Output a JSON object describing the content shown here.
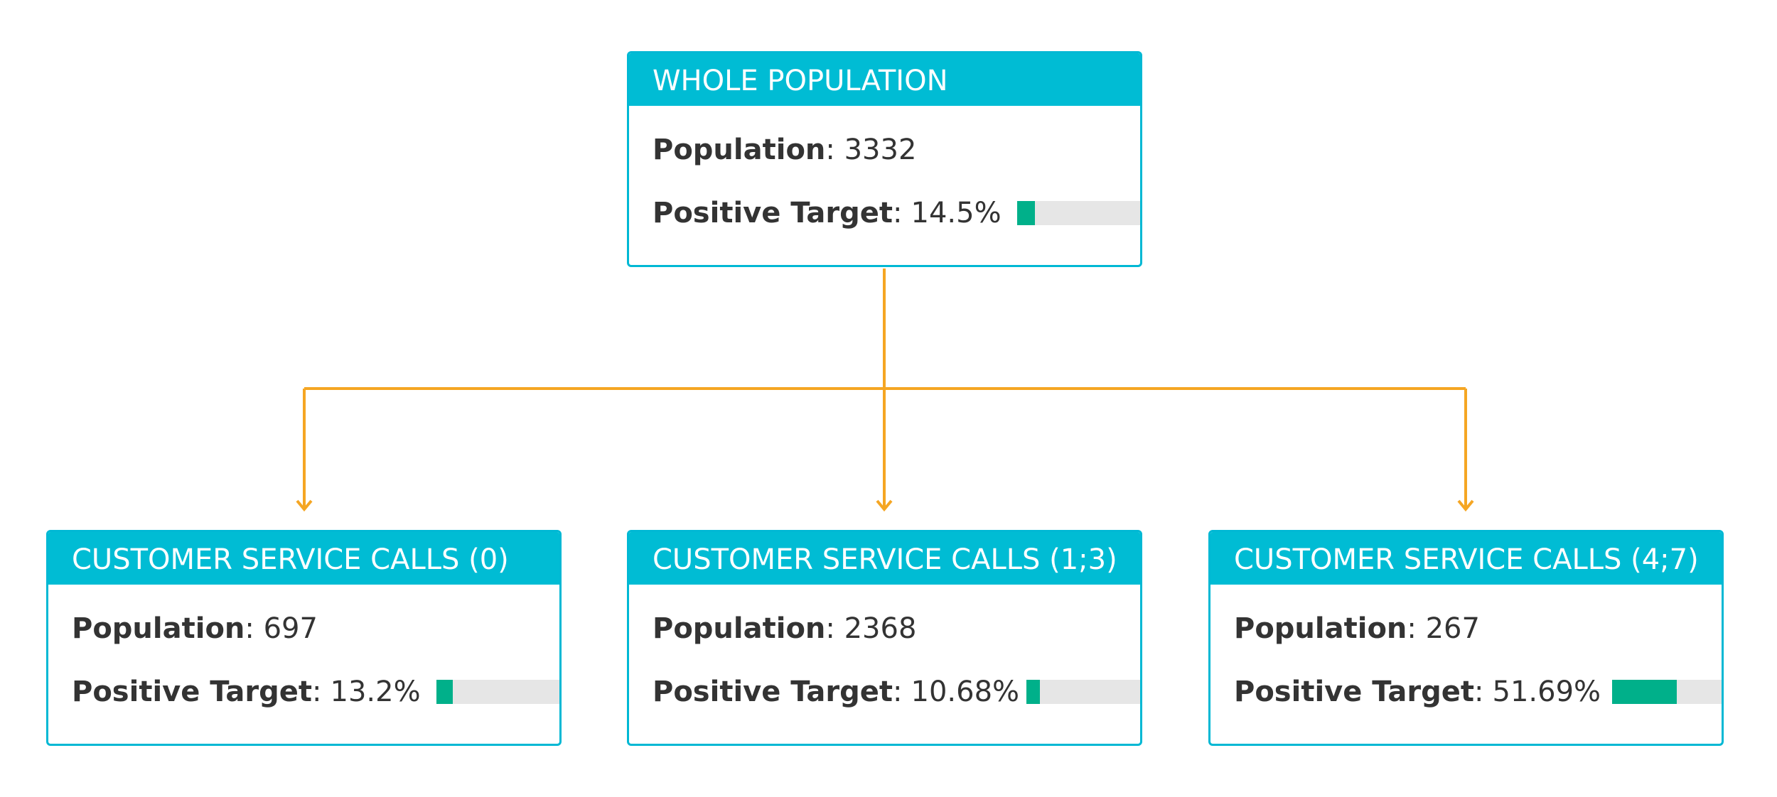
{
  "colors": {
    "header": "#00bcd4",
    "border": "#00b8d4",
    "connector": "#f5a623",
    "bar_fill": "#00b08a",
    "bar_track": "#e6e6e6"
  },
  "population_label": "Population",
  "target_label": "Positive Target",
  "root": {
    "title": "WHOLE POPULATION",
    "population": "3332",
    "target": "14.5%",
    "target_fraction": 0.145
  },
  "children": [
    {
      "title": "CUSTOMER SERVICE CALLS (0)",
      "population": "697",
      "target": "13.2%",
      "target_fraction": 0.132
    },
    {
      "title": "CUSTOMER SERVICE CALLS (1;3)",
      "population": "2368",
      "target": "10.68%",
      "target_fraction": 0.1068
    },
    {
      "title": "CUSTOMER SERVICE CALLS (4;7)",
      "population": "267",
      "target": "51.69%",
      "target_fraction": 0.5169
    }
  ]
}
